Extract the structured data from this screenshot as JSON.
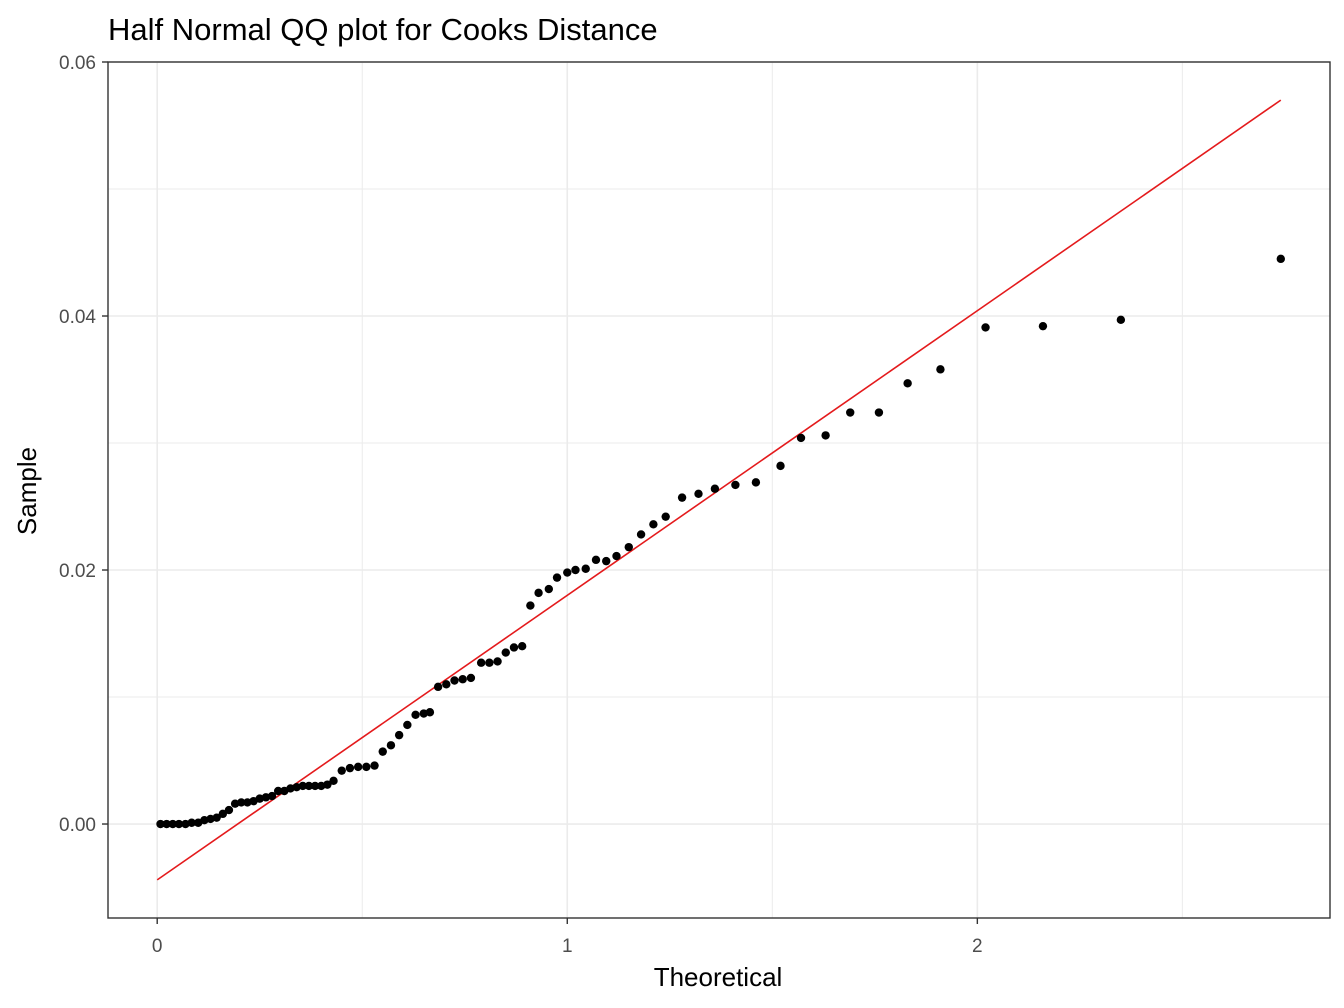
{
  "chart_data": {
    "type": "scatter",
    "title": "Half Normal QQ plot for Cooks Distance",
    "xlabel": "Theoretical",
    "ylabel": "Sample",
    "xlim": [
      -0.12,
      2.86
    ],
    "ylim": [
      -0.0074,
      0.06
    ],
    "x_ticks": [
      0,
      1,
      2
    ],
    "x_tick_labels": [
      "0",
      "1",
      "2"
    ],
    "y_ticks": [
      0,
      0.02,
      0.04,
      0.06
    ],
    "y_tick_labels": [
      "0.00",
      "0.02",
      "0.04",
      "0.06"
    ],
    "grid": true,
    "colors": {
      "points": "#000000",
      "line": "#e41a1c",
      "grid": "#ebebeb",
      "panel_border": "#333333"
    },
    "points": {
      "x": [
        0.008,
        0.023,
        0.038,
        0.053,
        0.069,
        0.084,
        0.1,
        0.115,
        0.13,
        0.145,
        0.16,
        0.175,
        0.19,
        0.205,
        0.22,
        0.235,
        0.25,
        0.265,
        0.28,
        0.295,
        0.31,
        0.325,
        0.34,
        0.355,
        0.37,
        0.385,
        0.4,
        0.415,
        0.43,
        0.45,
        0.47,
        0.49,
        0.51,
        0.53,
        0.55,
        0.57,
        0.59,
        0.61,
        0.63,
        0.65,
        0.665,
        0.685,
        0.705,
        0.725,
        0.745,
        0.765,
        0.79,
        0.81,
        0.83,
        0.85,
        0.87,
        0.89,
        0.91,
        0.93,
        0.955,
        0.975,
        1.0,
        1.02,
        1.045,
        1.07,
        1.095,
        1.12,
        1.15,
        1.18,
        1.21,
        1.24,
        1.28,
        1.32,
        1.36,
        1.41,
        1.46,
        1.52,
        1.57,
        1.63,
        1.69,
        1.76,
        1.83,
        1.91,
        2.02,
        2.16,
        2.35,
        2.74
      ],
      "y": [
        0.0,
        0.0,
        0.0,
        0.0,
        0.0,
        0.0001,
        0.0001,
        0.0003,
        0.0004,
        0.0005,
        0.0008,
        0.0011,
        0.0016,
        0.0017,
        0.0017,
        0.0018,
        0.002,
        0.0021,
        0.0022,
        0.0026,
        0.0026,
        0.0028,
        0.0029,
        0.003,
        0.003,
        0.003,
        0.003,
        0.0031,
        0.0034,
        0.0042,
        0.0044,
        0.0045,
        0.0045,
        0.0046,
        0.0057,
        0.0062,
        0.007,
        0.0078,
        0.0086,
        0.0087,
        0.0088,
        0.0108,
        0.011,
        0.0113,
        0.0114,
        0.0115,
        0.0127,
        0.0127,
        0.0128,
        0.0135,
        0.0139,
        0.014,
        0.0172,
        0.0182,
        0.0185,
        0.0194,
        0.0198,
        0.02,
        0.0201,
        0.0208,
        0.0207,
        0.0211,
        0.0218,
        0.0228,
        0.0236,
        0.0242,
        0.0257,
        0.026,
        0.0264,
        0.0267,
        0.0269,
        0.0282,
        0.0304,
        0.0306,
        0.0324,
        0.0324,
        0.0347,
        0.0358,
        0.0391,
        0.0392,
        0.0397,
        0.0445
      ]
    },
    "reference_line": {
      "x": [
        0.0,
        2.74
      ],
      "y": [
        -0.0044,
        0.057
      ]
    }
  }
}
